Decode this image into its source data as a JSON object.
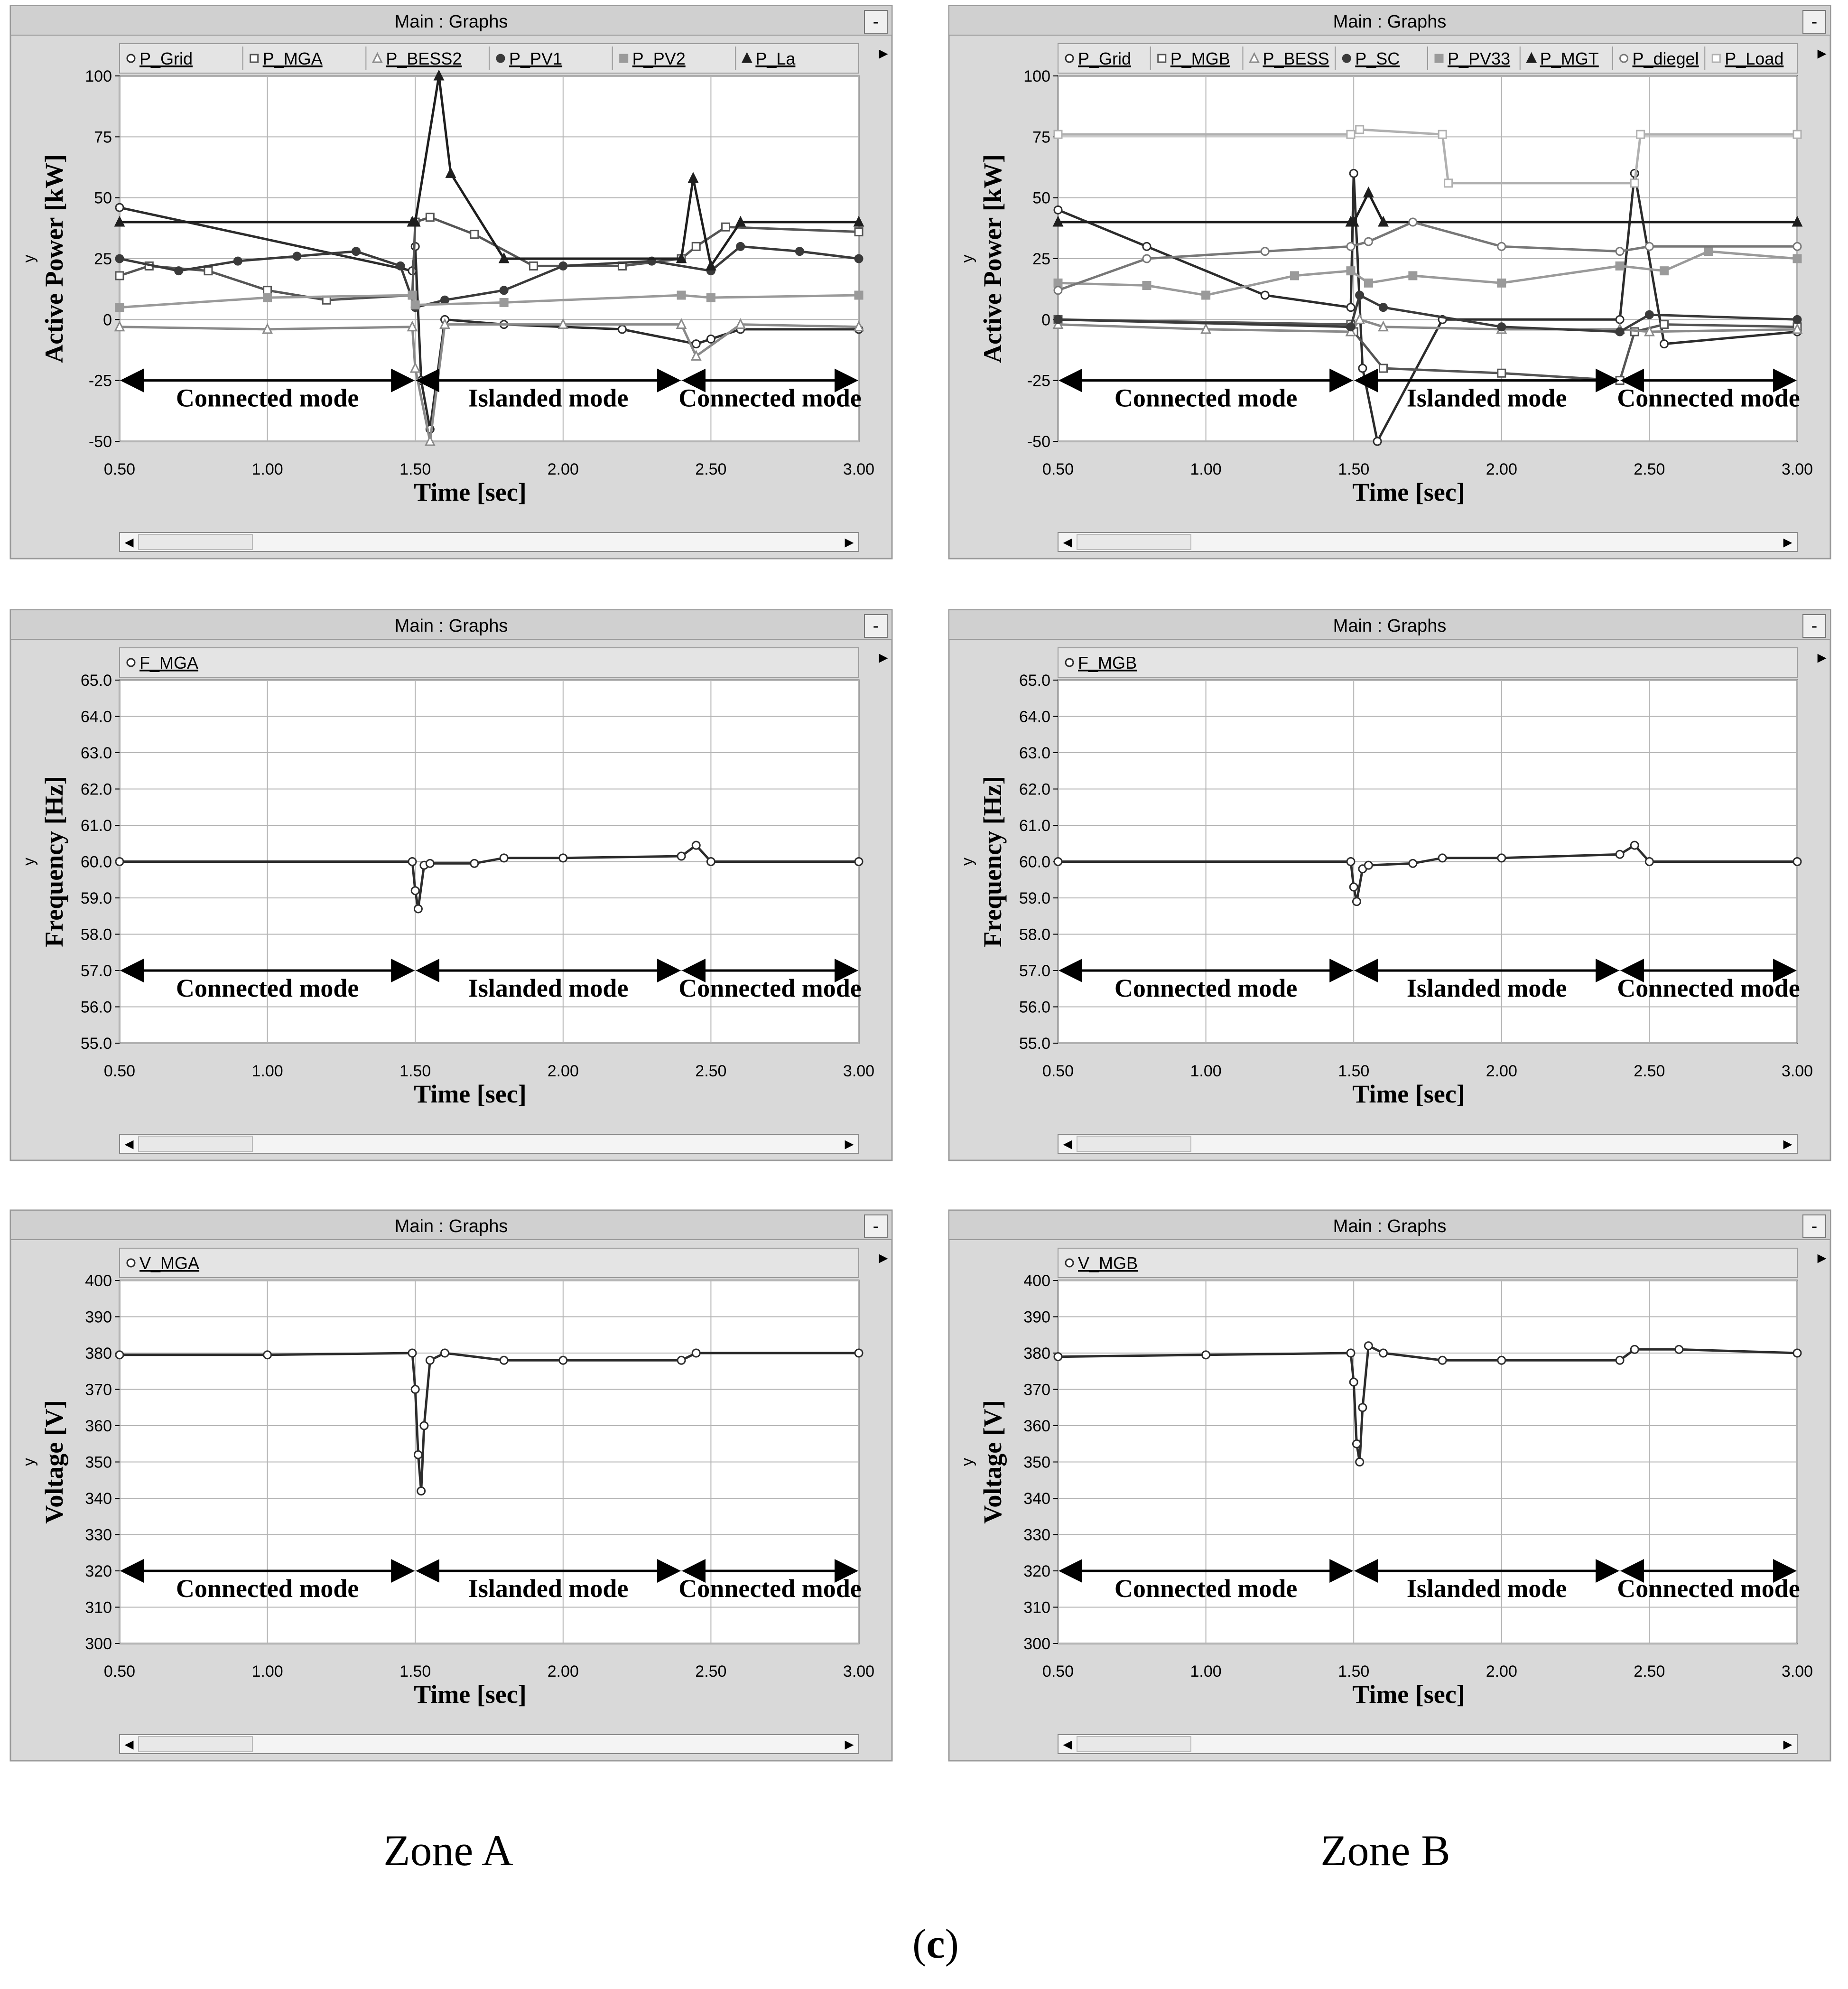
{
  "window_title": "Main : Graphs",
  "minimize_glyph": "-",
  "scroll_left_glyph": "◂",
  "scroll_right_glyph": "▸",
  "expand_glyph": "▸",
  "zone_labels": [
    "Zone A",
    "Zone B"
  ],
  "figure_label": {
    "open": "(",
    "letter": "c",
    "close": ")"
  },
  "colors": {
    "window_bg": "#d9d9d9",
    "plot_bg": "#ffffff",
    "grid": "#b4b4b4",
    "dark_trace": "#303030",
    "mid_trace": "#707070",
    "light_trace": "#a8a8a8"
  },
  "chart_data": [
    {
      "type": "line",
      "zone": "A",
      "ylabel": "Active Power [kW]",
      "y_small": "y",
      "xlabel": "Time [sec]",
      "xlim": [
        0.5,
        3.0
      ],
      "ylim": [
        -50,
        100
      ],
      "xticks": [
        "0.50",
        "1.00",
        "1.50",
        "2.00",
        "2.50",
        "3.00"
      ],
      "yticks": [
        "-50",
        "-25",
        "0",
        "25",
        "50",
        "75",
        "100"
      ],
      "modes": {
        "y": -25,
        "segments": [
          {
            "x0": 0.5,
            "x1": 1.5,
            "label": "Connected mode"
          },
          {
            "x0": 1.5,
            "x1": 2.4,
            "label": "Islanded mode"
          },
          {
            "x0": 2.4,
            "x1": 3.0,
            "label": "Connected mode"
          }
        ]
      },
      "series": [
        {
          "name": "P_Grid",
          "marker": "circle-open",
          "x": [
            0.5,
            1.49,
            1.5,
            1.52,
            1.55,
            1.6,
            1.8,
            2.2,
            2.45,
            2.5,
            2.6,
            3.0
          ],
          "y": [
            46,
            20,
            30,
            -25,
            -45,
            0,
            -2,
            -4,
            -10,
            -8,
            -4,
            -4
          ]
        },
        {
          "name": "P_MGA",
          "marker": "square-open",
          "x": [
            0.5,
            0.6,
            0.8,
            1.0,
            1.2,
            1.49,
            1.5,
            1.55,
            1.7,
            1.9,
            2.2,
            2.4,
            2.45,
            2.55,
            3.0
          ],
          "y": [
            18,
            22,
            20,
            12,
            8,
            10,
            40,
            42,
            35,
            22,
            22,
            25,
            30,
            38,
            36
          ]
        },
        {
          "name": "P_BESS2",
          "marker": "triangle-open",
          "x": [
            0.5,
            1.0,
            1.49,
            1.5,
            1.55,
            1.6,
            2.0,
            2.4,
            2.45,
            2.6,
            3.0
          ],
          "y": [
            -3,
            -4,
            -3,
            -20,
            -50,
            -2,
            -2,
            -2,
            -15,
            -2,
            -3
          ]
        },
        {
          "name": "P_PV1",
          "marker": "circle-filled",
          "x": [
            0.5,
            0.7,
            0.9,
            1.1,
            1.3,
            1.45,
            1.5,
            1.6,
            1.8,
            2.0,
            2.3,
            2.5,
            2.6,
            2.8,
            3.0
          ],
          "y": [
            25,
            20,
            24,
            26,
            28,
            22,
            5,
            8,
            12,
            22,
            24,
            20,
            30,
            28,
            25
          ]
        },
        {
          "name": "P_PV2",
          "marker": "square-filled",
          "x": [
            0.5,
            1.0,
            1.49,
            1.5,
            1.8,
            2.4,
            2.5,
            3.0
          ],
          "y": [
            5,
            9,
            10,
            6,
            7,
            10,
            9,
            10
          ]
        },
        {
          "name": "P_La",
          "marker": "triangle-filled",
          "x": [
            0.5,
            1.49,
            1.5,
            1.58,
            1.62,
            1.8,
            2.4,
            2.44,
            2.5,
            2.6,
            3.0
          ],
          "y": [
            40,
            40,
            40,
            100,
            60,
            25,
            25,
            58,
            22,
            40,
            40
          ]
        }
      ]
    },
    {
      "type": "line",
      "zone": "B",
      "ylabel": "Active Power [kW]",
      "y_small": "y",
      "xlabel": "Time [sec]",
      "xlim": [
        0.5,
        3.0
      ],
      "ylim": [
        -50,
        100
      ],
      "xticks": [
        "0.50",
        "1.00",
        "1.50",
        "2.00",
        "2.50",
        "3.00"
      ],
      "yticks": [
        "-50",
        "-25",
        "0",
        "25",
        "50",
        "75",
        "100"
      ],
      "modes": {
        "y": -25,
        "segments": [
          {
            "x0": 0.5,
            "x1": 1.5,
            "label": "Connected mode"
          },
          {
            "x0": 1.5,
            "x1": 2.4,
            "label": "Islanded mode"
          },
          {
            "x0": 2.4,
            "x1": 3.0,
            "label": "Connected mode"
          }
        ]
      },
      "series": [
        {
          "name": "P_Grid",
          "marker": "circle-open",
          "x": [
            0.5,
            0.8,
            1.2,
            1.49,
            1.5,
            1.53,
            1.58,
            1.8,
            2.4,
            2.45,
            2.55,
            3.0
          ],
          "y": [
            45,
            30,
            10,
            5,
            60,
            -20,
            -50,
            0,
            0,
            60,
            -10,
            -5
          ]
        },
        {
          "name": "P_MGB",
          "marker": "square-open",
          "x": [
            0.5,
            1.49,
            1.5,
            1.6,
            2.0,
            2.4,
            2.45,
            2.55,
            3.0
          ],
          "y": [
            0,
            -2,
            -5,
            -20,
            -22,
            -25,
            -5,
            -2,
            -3
          ]
        },
        {
          "name": "P_BESS",
          "marker": "triangle-open",
          "x": [
            0.5,
            1.0,
            1.49,
            1.52,
            1.6,
            2.0,
            2.4,
            2.5,
            3.0
          ],
          "y": [
            -2,
            -4,
            -5,
            0,
            -3,
            -4,
            -4,
            -5,
            -4
          ]
        },
        {
          "name": "P_SC",
          "marker": "circle-filled",
          "x": [
            0.5,
            1.49,
            1.52,
            1.6,
            2.0,
            2.4,
            2.5,
            3.0
          ],
          "y": [
            0,
            -3,
            10,
            5,
            -3,
            -5,
            2,
            0
          ]
        },
        {
          "name": "P_PV33",
          "marker": "square-filled",
          "x": [
            0.5,
            0.8,
            1.0,
            1.3,
            1.49,
            1.55,
            1.7,
            2.0,
            2.4,
            2.55,
            2.7,
            3.0
          ],
          "y": [
            15,
            14,
            10,
            18,
            20,
            15,
            18,
            15,
            22,
            20,
            28,
            25
          ]
        },
        {
          "name": "P_MGT",
          "marker": "triangle-filled",
          "x": [
            0.5,
            1.49,
            1.5,
            1.55,
            1.6,
            3.0
          ],
          "y": [
            40,
            40,
            40,
            52,
            40,
            40
          ]
        },
        {
          "name": "P_diegel",
          "marker": "circle-open",
          "x": [
            0.5,
            0.8,
            1.2,
            1.49,
            1.55,
            1.7,
            2.0,
            2.4,
            2.5,
            3.0
          ],
          "y": [
            12,
            25,
            28,
            30,
            32,
            40,
            30,
            28,
            30,
            30
          ]
        },
        {
          "name": "P_Load",
          "marker": "square-open",
          "x": [
            0.5,
            1.49,
            1.52,
            1.8,
            1.82,
            2.45,
            2.47,
            3.0
          ],
          "y": [
            76,
            76,
            78,
            76,
            56,
            56,
            76,
            76
          ]
        }
      ]
    },
    {
      "type": "line",
      "zone": "A",
      "ylabel": "Frequency [Hz]",
      "y_small": "y",
      "xlabel": "Time [sec]",
      "xlim": [
        0.5,
        3.0
      ],
      "ylim": [
        55,
        65
      ],
      "xticks": [
        "0.50",
        "1.00",
        "1.50",
        "2.00",
        "2.50",
        "3.00"
      ],
      "yticks": [
        "55.0",
        "56.0",
        "57.0",
        "58.0",
        "59.0",
        "60.0",
        "61.0",
        "62.0",
        "63.0",
        "64.0",
        "65.0"
      ],
      "modes": {
        "y": 57,
        "segments": [
          {
            "x0": 0.5,
            "x1": 1.5,
            "label": "Connected mode"
          },
          {
            "x0": 1.5,
            "x1": 2.4,
            "label": "Islanded mode"
          },
          {
            "x0": 2.4,
            "x1": 3.0,
            "label": "Connected mode"
          }
        ]
      },
      "series": [
        {
          "name": "F_MGA",
          "marker": "circle-open",
          "x": [
            0.5,
            1.49,
            1.5,
            1.51,
            1.53,
            1.55,
            1.7,
            1.8,
            2.0,
            2.4,
            2.45,
            2.5,
            3.0
          ],
          "y": [
            60,
            60,
            59.2,
            58.7,
            59.9,
            59.95,
            59.95,
            60.1,
            60.1,
            60.15,
            60.45,
            60.0,
            60.0
          ]
        }
      ]
    },
    {
      "type": "line",
      "zone": "B",
      "ylabel": "Frequency [Hz]",
      "y_small": "y",
      "xlabel": "Time [sec]",
      "xlim": [
        0.5,
        3.0
      ],
      "ylim": [
        55,
        65
      ],
      "xticks": [
        "0.50",
        "1.00",
        "1.50",
        "2.00",
        "2.50",
        "3.00"
      ],
      "yticks": [
        "55.0",
        "56.0",
        "57.0",
        "58.0",
        "59.0",
        "60.0",
        "61.0",
        "62.0",
        "63.0",
        "64.0",
        "65.0"
      ],
      "modes": {
        "y": 57,
        "segments": [
          {
            "x0": 0.5,
            "x1": 1.5,
            "label": "Connected mode"
          },
          {
            "x0": 1.5,
            "x1": 2.4,
            "label": "Islanded mode"
          },
          {
            "x0": 2.4,
            "x1": 3.0,
            "label": "Connected mode"
          }
        ]
      },
      "series": [
        {
          "name": "F_MGB",
          "marker": "circle-open",
          "x": [
            0.5,
            1.49,
            1.5,
            1.51,
            1.53,
            1.55,
            1.7,
            1.8,
            2.0,
            2.4,
            2.45,
            2.5,
            3.0
          ],
          "y": [
            60,
            60,
            59.3,
            58.9,
            59.8,
            59.9,
            59.95,
            60.1,
            60.1,
            60.2,
            60.45,
            60.0,
            60.0
          ]
        }
      ]
    },
    {
      "type": "line",
      "zone": "A",
      "ylabel": "Voltage [V]",
      "y_small": "y",
      "xlabel": "Time [sec]",
      "xlim": [
        0.5,
        3.0
      ],
      "ylim": [
        300,
        400
      ],
      "xticks": [
        "0.50",
        "1.00",
        "1.50",
        "2.00",
        "2.50",
        "3.00"
      ],
      "yticks": [
        "300",
        "310",
        "320",
        "330",
        "340",
        "350",
        "360",
        "370",
        "380",
        "390",
        "400"
      ],
      "modes": {
        "y": 320,
        "segments": [
          {
            "x0": 0.5,
            "x1": 1.5,
            "label": "Connected mode"
          },
          {
            "x0": 1.5,
            "x1": 2.4,
            "label": "Islanded mode"
          },
          {
            "x0": 2.4,
            "x1": 3.0,
            "label": "Connected mode"
          }
        ]
      },
      "series": [
        {
          "name": "V_MGA",
          "marker": "circle-open",
          "x": [
            0.5,
            1.0,
            1.49,
            1.5,
            1.51,
            1.52,
            1.53,
            1.55,
            1.6,
            1.8,
            2.0,
            2.4,
            2.45,
            3.0
          ],
          "y": [
            379.5,
            379.5,
            380,
            370,
            352,
            342,
            360,
            378,
            380,
            378,
            378,
            378,
            380,
            380
          ]
        }
      ]
    },
    {
      "type": "line",
      "zone": "B",
      "ylabel": "Voltage [V]",
      "y_small": "y",
      "xlabel": "Time [sec]",
      "xlim": [
        0.5,
        3.0
      ],
      "ylim": [
        300,
        400
      ],
      "xticks": [
        "0.50",
        "1.00",
        "1.50",
        "2.00",
        "2.50",
        "3.00"
      ],
      "yticks": [
        "300",
        "310",
        "320",
        "330",
        "340",
        "350",
        "360",
        "370",
        "380",
        "390",
        "400"
      ],
      "modes": {
        "y": 320,
        "segments": [
          {
            "x0": 0.5,
            "x1": 1.5,
            "label": "Connected mode"
          },
          {
            "x0": 1.5,
            "x1": 2.4,
            "label": "Islanded mode"
          },
          {
            "x0": 2.4,
            "x1": 3.0,
            "label": "Connected mode"
          }
        ]
      },
      "series": [
        {
          "name": "V_MGB",
          "marker": "circle-open",
          "x": [
            0.5,
            1.0,
            1.49,
            1.5,
            1.51,
            1.52,
            1.53,
            1.55,
            1.6,
            1.8,
            2.0,
            2.4,
            2.45,
            2.6,
            3.0
          ],
          "y": [
            379,
            379.5,
            380,
            372,
            355,
            350,
            365,
            382,
            380,
            378,
            378,
            378,
            381,
            381,
            380
          ]
        }
      ]
    }
  ]
}
